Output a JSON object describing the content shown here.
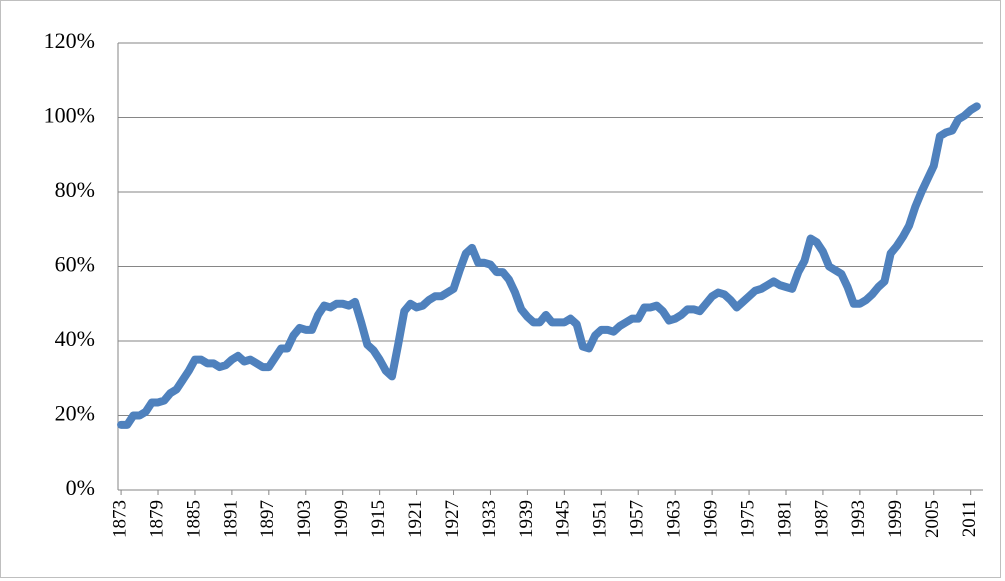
{
  "chart_data": {
    "type": "line",
    "x": [
      1873,
      1874,
      1875,
      1876,
      1877,
      1878,
      1879,
      1880,
      1881,
      1882,
      1883,
      1884,
      1885,
      1886,
      1887,
      1888,
      1889,
      1890,
      1891,
      1892,
      1893,
      1894,
      1895,
      1896,
      1897,
      1898,
      1899,
      1900,
      1901,
      1902,
      1903,
      1904,
      1905,
      1906,
      1907,
      1908,
      1909,
      1910,
      1911,
      1912,
      1913,
      1914,
      1915,
      1916,
      1917,
      1918,
      1919,
      1920,
      1921,
      1922,
      1923,
      1924,
      1925,
      1926,
      1927,
      1928,
      1929,
      1930,
      1931,
      1932,
      1933,
      1934,
      1935,
      1936,
      1937,
      1938,
      1939,
      1940,
      1941,
      1942,
      1943,
      1944,
      1945,
      1946,
      1947,
      1948,
      1949,
      1950,
      1951,
      1952,
      1953,
      1954,
      1955,
      1956,
      1957,
      1958,
      1959,
      1960,
      1961,
      1962,
      1963,
      1964,
      1965,
      1966,
      1967,
      1968,
      1969,
      1970,
      1971,
      1972,
      1973,
      1974,
      1975,
      1976,
      1977,
      1978,
      1979,
      1980,
      1981,
      1982,
      1983,
      1984,
      1985,
      1986,
      1987,
      1988,
      1989,
      1990,
      1991,
      1992,
      1993,
      1994,
      1995,
      1996,
      1997,
      1998,
      1999,
      2000,
      2001,
      2002,
      2003,
      2004,
      2005,
      2006,
      2007,
      2008,
      2009,
      2010,
      2011,
      2012
    ],
    "series": [
      {
        "color": "#4f81bd",
        "values": [
          17.5,
          17.5,
          20,
          20,
          21,
          23.5,
          23.5,
          24,
          26,
          27,
          29.5,
          32,
          35,
          35,
          34,
          34,
          33,
          33.5,
          35,
          36,
          34.5,
          35,
          34,
          33,
          33,
          35.5,
          38,
          38,
          41.5,
          43.5,
          43,
          43,
          47,
          49.5,
          49,
          50,
          50,
          49.5,
          50.5,
          45,
          39,
          37.5,
          35,
          32,
          30.5,
          39,
          48,
          50,
          49,
          49.5,
          51,
          52,
          52,
          53,
          54,
          59,
          63.5,
          65,
          61,
          61,
          60.5,
          58.5,
          58.5,
          56.5,
          53,
          48.5,
          46.5,
          45,
          45,
          47,
          45,
          45,
          45,
          46,
          44.5,
          38.5,
          38,
          41.5,
          43,
          43,
          42.5,
          44,
          45,
          46,
          46,
          49,
          49,
          49.5,
          48,
          45.5,
          46,
          47,
          48.5,
          48.5,
          48,
          50,
          52,
          53,
          52.5,
          51,
          49,
          50.5,
          52,
          53.5,
          54,
          55,
          56,
          55,
          54.5,
          54,
          58.5,
          61.5,
          67.5,
          66.5,
          64,
          60,
          59,
          58,
          54.5,
          50,
          50,
          51,
          52.5,
          54.5,
          56,
          63.5,
          65.5,
          68,
          71,
          76,
          80,
          83.5,
          87,
          95,
          96,
          96.5,
          99.5,
          100.5,
          102,
          103
        ]
      }
    ],
    "xlim": [
      1872.5,
      2013
    ],
    "xticks": [
      1873,
      1879,
      1885,
      1891,
      1897,
      1903,
      1909,
      1915,
      1921,
      1927,
      1933,
      1939,
      1945,
      1951,
      1957,
      1963,
      1969,
      1975,
      1981,
      1987,
      1993,
      1999,
      2005,
      2011
    ],
    "ylim": [
      0,
      120
    ],
    "yticks": [
      {
        "value": 0,
        "label": "0%"
      },
      {
        "value": 20,
        "label": "20%"
      },
      {
        "value": 40,
        "label": "40%"
      },
      {
        "value": 60,
        "label": "60%"
      },
      {
        "value": 80,
        "label": "80%"
      },
      {
        "value": 100,
        "label": "100%"
      },
      {
        "value": 120,
        "label": "120%"
      }
    ],
    "grid": true
  }
}
